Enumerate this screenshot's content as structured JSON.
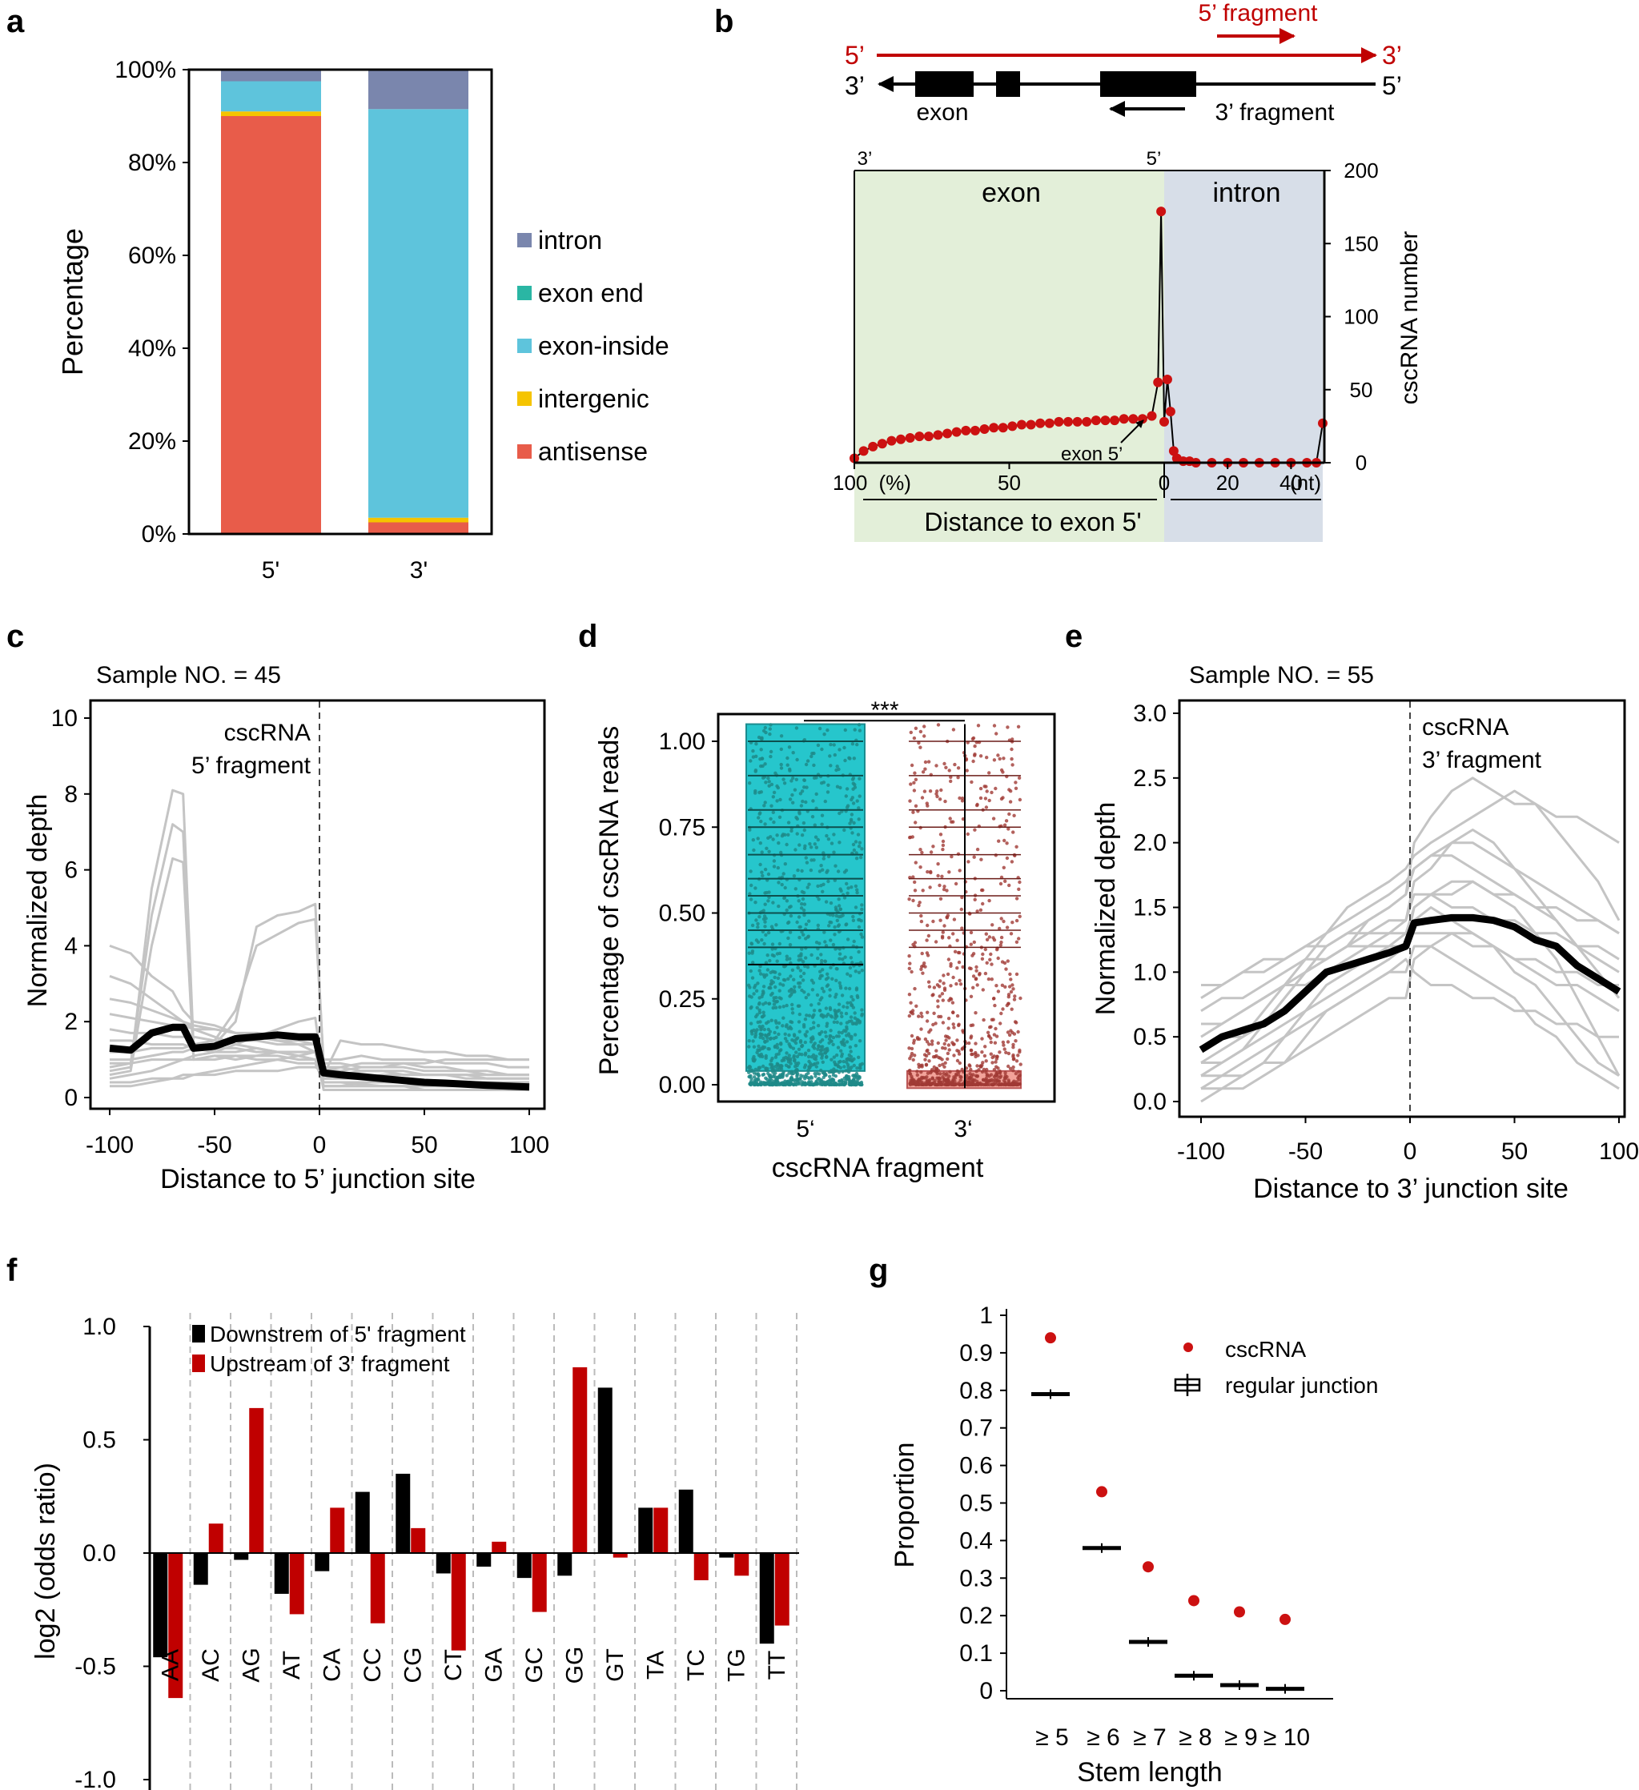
{
  "panel_labels": [
    "a",
    "b",
    "c",
    "d",
    "e",
    "f",
    "g"
  ],
  "colors": {
    "intron": "#7a86ad",
    "exon_end": "#2ab6a4",
    "exon_inside": "#5ec4dc",
    "intergenic": "#f5c400",
    "antisense": "#e85c4a",
    "red": "#c00000",
    "dot_red": "#cc1111",
    "exon_bg": "#e3efd9",
    "intron_bg": "#d7dee8",
    "gray_line": "#c4c4c4",
    "teal_box": "#26c6cc",
    "pink_box": "#f2a39a"
  },
  "chart_data": [
    {
      "panel": "a",
      "type": "bar",
      "stacked": true,
      "ylabel": "Percentage",
      "categories": [
        "5'",
        "3'"
      ],
      "y_ticks": [
        "0%",
        "20%",
        "40%",
        "60%",
        "80%",
        "100%"
      ],
      "ylim": [
        0,
        100
      ],
      "series": [
        {
          "name": "antisense",
          "values": [
            90.0,
            2.5
          ]
        },
        {
          "name": "intergenic",
          "values": [
            1.0,
            1.0
          ]
        },
        {
          "name": "exon-inside",
          "values": [
            6.5,
            88.0
          ]
        },
        {
          "name": "exon end",
          "values": [
            0,
            0
          ]
        },
        {
          "name": "intron",
          "values": [
            2.5,
            8.5
          ]
        }
      ],
      "legend_order": [
        "intron",
        "exon end",
        "exon-inside",
        "intergenic",
        "antisense"
      ]
    },
    {
      "panel": "b",
      "type": "line",
      "schematic": {
        "top_left": "5’",
        "top_right": "3’",
        "bottom_left": "3’",
        "bottom_right": "5’",
        "fragment5": "5’ fragment",
        "exon": "exon",
        "fragment3": "3’ fragment"
      },
      "region_labels": [
        "exon",
        "intron"
      ],
      "corner_labels": [
        "3’",
        "5’"
      ],
      "ylabel": "cscRNA number",
      "y_ticks": [
        "0",
        "50",
        "100",
        "150",
        "200"
      ],
      "ylim": [
        0,
        200
      ],
      "x_ticks": [
        "100",
        "(%)",
        "50",
        "0",
        "20",
        "40",
        "(nt)"
      ],
      "xlabel": "Distance to exon 5'",
      "annotation": "exon 5’",
      "exon_x_percent": [
        100,
        97,
        94,
        91,
        88,
        85,
        82,
        79,
        76,
        73,
        70,
        67,
        64,
        61,
        58,
        55,
        52,
        49,
        46,
        43,
        40,
        37,
        34,
        31,
        28,
        25,
        22,
        19,
        16,
        13,
        10,
        7,
        4,
        2,
        1
      ],
      "exon_values": [
        3,
        8,
        11,
        13,
        15,
        16,
        17,
        18,
        18,
        19,
        20,
        21,
        22,
        22,
        23,
        24,
        24,
        25,
        26,
        26,
        27,
        27,
        28,
        28,
        28,
        28,
        29,
        29,
        29,
        30,
        30,
        30,
        32,
        55,
        172
      ],
      "intron_x_nt": [
        0,
        1,
        2,
        3,
        4,
        6,
        8,
        10,
        15,
        20,
        25,
        30,
        35,
        40,
        45,
        48,
        50
      ],
      "intron_values": [
        28,
        57,
        35,
        8,
        3,
        1,
        1,
        0,
        0,
        0,
        0,
        0,
        0,
        0,
        0,
        0,
        27
      ]
    },
    {
      "panel": "c",
      "type": "line",
      "title": "Sample NO. = 45",
      "annotation": [
        "cscRNA",
        "5’ fragment"
      ],
      "ylabel": "Normalized depth",
      "xlabel": "Distance to 5’ junction site",
      "y_ticks": [
        "0",
        "2",
        "4",
        "6",
        "8",
        "10"
      ],
      "ylim": [
        0,
        10
      ],
      "x_ticks": [
        "-100",
        "-50",
        "0",
        "50",
        "100"
      ],
      "xlim": [
        -100,
        100
      ],
      "x": [
        -100,
        -90,
        -80,
        -70,
        -65,
        -60,
        -50,
        -40,
        -30,
        -20,
        -10,
        -2,
        2,
        10,
        20,
        30,
        40,
        50,
        60,
        70,
        80,
        90,
        100
      ],
      "mean_values": [
        1.3,
        1.25,
        1.7,
        1.85,
        1.85,
        1.3,
        1.35,
        1.55,
        1.6,
        1.65,
        1.6,
        1.6,
        0.65,
        0.6,
        0.55,
        0.5,
        0.45,
        0.4,
        0.38,
        0.35,
        0.32,
        0.3,
        0.28
      ],
      "sample_series": [
        [
          4.0,
          3.8,
          3.2,
          2.8,
          2.3,
          2.0,
          1.9,
          1.7,
          1.6,
          1.5,
          1.4,
          1.2,
          0.4,
          0.4,
          0.35,
          0.3,
          0.3,
          0.3,
          0.3,
          0.3,
          0.3,
          0.3,
          0.3
        ],
        [
          0.7,
          0.8,
          5.5,
          8.1,
          8.0,
          1.3,
          1.2,
          1.2,
          1.3,
          1.2,
          1.1,
          1.0,
          0.7,
          0.8,
          0.9,
          0.9,
          0.9,
          0.8,
          0.8,
          0.7,
          0.7,
          0.6,
          0.6
        ],
        [
          0.8,
          0.9,
          4.8,
          7.2,
          7.0,
          1.0,
          1.1,
          1.0,
          1.1,
          1.1,
          1.0,
          1.0,
          0.5,
          0.6,
          0.7,
          0.7,
          0.7,
          0.6,
          0.6,
          0.6,
          0.5,
          0.5,
          0.5
        ],
        [
          0.6,
          0.7,
          4.0,
          6.3,
          6.2,
          1.0,
          1.0,
          1.1,
          1.0,
          1.0,
          0.9,
          0.9,
          0.4,
          0.4,
          0.4,
          0.4,
          0.4,
          0.4,
          0.4,
          0.4,
          0.4,
          0.4,
          0.4
        ],
        [
          1.0,
          1.0,
          1.1,
          1.2,
          1.2,
          1.3,
          1.4,
          2.0,
          4.5,
          4.8,
          4.9,
          5.1,
          0.8,
          0.8,
          0.7,
          0.7,
          0.6,
          0.6,
          0.6,
          0.5,
          0.5,
          0.5,
          0.5
        ],
        [
          1.2,
          1.2,
          1.3,
          1.3,
          1.3,
          1.4,
          1.5,
          2.3,
          4.0,
          4.3,
          4.6,
          4.7,
          0.9,
          0.9,
          0.8,
          0.8,
          0.8,
          0.7,
          0.7,
          0.7,
          0.6,
          0.6,
          0.6
        ],
        [
          3.2,
          3.0,
          2.6,
          2.2,
          2.0,
          1.8,
          1.6,
          1.4,
          1.3,
          1.2,
          1.1,
          1.0,
          0.3,
          0.3,
          0.3,
          0.3,
          0.3,
          0.2,
          0.2,
          0.2,
          0.2,
          0.2,
          0.2
        ],
        [
          2.2,
          2.1,
          2.0,
          1.9,
          1.9,
          1.8,
          1.8,
          1.7,
          1.7,
          1.6,
          1.6,
          1.5,
          1.0,
          1.0,
          1.1,
          1.0,
          1.0,
          1.0,
          0.9,
          0.9,
          0.9,
          0.8,
          0.8
        ],
        [
          0.5,
          0.6,
          0.7,
          0.9,
          1.0,
          1.1,
          1.2,
          1.4,
          1.6,
          1.8,
          2.0,
          2.1,
          0.5,
          0.5,
          0.5,
          0.6,
          0.6,
          0.6,
          0.6,
          0.6,
          0.6,
          0.6,
          0.6
        ],
        [
          1.5,
          1.5,
          1.4,
          1.4,
          1.4,
          1.3,
          1.3,
          1.3,
          1.2,
          1.2,
          1.2,
          1.2,
          0.3,
          0.3,
          0.4,
          0.4,
          0.4,
          0.4,
          0.4,
          0.4,
          0.4,
          0.4,
          0.4
        ],
        [
          0.3,
          0.3,
          0.4,
          0.5,
          0.5,
          0.6,
          0.7,
          0.8,
          0.9,
          1.0,
          1.1,
          1.2,
          0.2,
          0.2,
          0.2,
          0.2,
          0.2,
          0.2,
          0.2,
          0.2,
          0.2,
          0.2,
          0.2
        ],
        [
          1.8,
          1.7,
          1.7,
          1.6,
          1.6,
          1.6,
          1.5,
          1.5,
          1.5,
          1.4,
          1.4,
          1.4,
          0.6,
          1.5,
          1.4,
          1.4,
          1.3,
          1.2,
          1.2,
          1.1,
          1.1,
          1.0,
          1.0
        ],
        [
          0.9,
          0.9,
          1.0,
          1.0,
          1.0,
          1.0,
          1.1,
          1.1,
          1.1,
          1.2,
          1.2,
          1.2,
          0.3,
          0.3,
          0.3,
          0.3,
          0.3,
          0.3,
          0.3,
          0.3,
          0.3,
          0.3,
          0.3
        ],
        [
          2.6,
          2.5,
          2.3,
          2.1,
          2.0,
          1.9,
          1.8,
          1.7,
          1.6,
          1.5,
          1.5,
          1.4,
          0.5,
          0.5,
          0.5,
          0.5,
          0.5,
          0.4,
          0.4,
          0.4,
          0.4,
          0.4,
          0.4
        ],
        [
          0.4,
          0.4,
          0.5,
          0.5,
          0.6,
          0.6,
          0.6,
          0.7,
          0.7,
          0.7,
          0.8,
          0.8,
          0.7,
          0.7,
          0.8,
          0.8,
          0.9,
          0.9,
          1.0,
          1.0,
          1.0,
          1.0,
          1.0
        ]
      ]
    },
    {
      "panel": "d",
      "type": "scatter",
      "ylabel": "Percentage of cscRNA reads",
      "xlabel": "cscRNA fragment",
      "categories": [
        "5‘",
        "3‘"
      ],
      "y_ticks": [
        "0.00",
        "0.25",
        "0.50",
        "0.75",
        "1.00"
      ],
      "ylim": [
        0,
        1
      ],
      "boxes": [
        {
          "name": "5‘",
          "q1": 0.04,
          "median": 0.35,
          "q3": 1.05
        },
        {
          "name": "3‘",
          "q1": -0.01,
          "median": 0.0,
          "q3": 0.04
        }
      ],
      "significance": "***"
    },
    {
      "panel": "e",
      "type": "line",
      "title": "Sample NO. = 55",
      "annotation": [
        "cscRNA",
        "3’ fragment"
      ],
      "ylabel": "Normalized depth",
      "xlabel": "Distance to 3’ junction site",
      "y_ticks": [
        "0.0",
        "0.5",
        "1.0",
        "1.5",
        "2.0",
        "2.5",
        "3.0"
      ],
      "ylim": [
        0,
        3
      ],
      "x_ticks": [
        "-100",
        "-50",
        "0",
        "50",
        "100"
      ],
      "xlim": [
        -100,
        100
      ],
      "x": [
        -100,
        -90,
        -80,
        -70,
        -60,
        -50,
        -40,
        -30,
        -20,
        -10,
        -2,
        2,
        10,
        20,
        30,
        40,
        50,
        60,
        70,
        80,
        90,
        100
      ],
      "mean_values": [
        0.4,
        0.5,
        0.55,
        0.6,
        0.7,
        0.85,
        1.0,
        1.05,
        1.1,
        1.15,
        1.2,
        1.38,
        1.4,
        1.42,
        1.42,
        1.4,
        1.35,
        1.25,
        1.2,
        1.05,
        0.95,
        0.85
      ],
      "sample_series": [
        [
          0.2,
          0.3,
          0.4,
          0.6,
          0.8,
          1.0,
          1.2,
          1.3,
          1.4,
          1.5,
          1.6,
          2.0,
          2.2,
          2.4,
          2.5,
          2.4,
          2.3,
          2.3,
          2.2,
          2.2,
          2.1,
          2.0
        ],
        [
          0.5,
          0.6,
          0.7,
          0.8,
          0.9,
          1.0,
          1.1,
          1.2,
          1.3,
          1.3,
          1.4,
          1.7,
          1.8,
          2.0,
          2.1,
          2.0,
          1.8,
          1.6,
          1.4,
          1.2,
          1.0,
          0.8
        ],
        [
          0.1,
          0.1,
          0.2,
          0.3,
          0.5,
          0.7,
          0.9,
          1.0,
          1.1,
          1.2,
          1.2,
          1.5,
          1.6,
          1.7,
          1.7,
          1.6,
          1.5,
          1.3,
          1.1,
          0.8,
          0.5,
          0.2
        ],
        [
          0.7,
          0.8,
          0.8,
          0.9,
          1.0,
          1.1,
          1.1,
          1.2,
          1.2,
          1.3,
          1.3,
          1.3,
          1.3,
          1.3,
          1.2,
          1.2,
          1.1,
          1.1,
          1.0,
          1.0,
          0.9,
          0.9
        ],
        [
          0.3,
          0.4,
          0.5,
          0.6,
          0.8,
          1.0,
          1.1,
          1.2,
          1.4,
          1.5,
          1.6,
          1.8,
          1.9,
          1.9,
          1.8,
          1.7,
          1.6,
          1.5,
          1.4,
          1.2,
          1.1,
          1.0
        ],
        [
          0.0,
          0.1,
          0.1,
          0.2,
          0.3,
          0.5,
          0.7,
          0.8,
          0.9,
          1.0,
          1.0,
          1.2,
          1.2,
          1.1,
          1.0,
          0.9,
          0.8,
          0.6,
          0.5,
          0.3,
          0.2,
          0.1
        ],
        [
          0.8,
          0.9,
          1.0,
          1.0,
          1.1,
          1.2,
          1.2,
          1.3,
          1.3,
          1.4,
          1.4,
          1.6,
          1.6,
          1.5,
          1.5,
          1.4,
          1.4,
          1.3,
          1.3,
          1.2,
          1.2,
          1.1
        ],
        [
          0.4,
          0.5,
          0.5,
          0.7,
          0.9,
          1.1,
          1.3,
          1.5,
          1.6,
          1.7,
          1.8,
          1.9,
          2.0,
          2.1,
          2.2,
          2.3,
          2.4,
          2.3,
          2.1,
          1.9,
          1.7,
          1.4
        ],
        [
          0.2,
          0.2,
          0.3,
          0.4,
          0.5,
          0.6,
          0.7,
          0.8,
          0.9,
          1.0,
          1.1,
          1.0,
          0.9,
          0.9,
          0.8,
          0.8,
          0.7,
          0.7,
          0.6,
          0.6,
          0.5,
          0.5
        ],
        [
          0.6,
          0.6,
          0.7,
          0.8,
          0.9,
          0.9,
          1.0,
          1.1,
          1.2,
          1.2,
          1.3,
          1.5,
          1.6,
          1.6,
          1.7,
          1.6,
          1.6,
          1.5,
          1.5,
          1.4,
          1.4,
          1.3
        ],
        [
          0.1,
          0.2,
          0.2,
          0.3,
          0.3,
          0.4,
          0.5,
          0.6,
          0.7,
          0.8,
          0.8,
          1.1,
          1.2,
          1.3,
          1.3,
          1.2,
          1.1,
          1.0,
          0.9,
          0.9,
          0.8,
          0.7
        ],
        [
          0.9,
          0.9,
          1.0,
          1.1,
          1.1,
          1.2,
          1.3,
          1.4,
          1.5,
          1.6,
          1.7,
          1.8,
          1.9,
          2.0,
          2.0,
          1.9,
          1.8,
          1.7,
          1.6,
          1.5,
          1.4,
          1.3
        ],
        [
          0.3,
          0.3,
          0.4,
          0.5,
          0.6,
          0.7,
          0.8,
          0.9,
          1.0,
          1.1,
          1.2,
          1.4,
          1.5,
          1.4,
          1.3,
          1.2,
          1.0,
          0.9,
          0.7,
          0.5,
          0.3,
          0.2
        ]
      ]
    },
    {
      "panel": "f",
      "type": "bar",
      "ylabel": "log2 (odds ratio)",
      "y_ticks": [
        "-1.0",
        "-0.5",
        "0.0",
        "0.5",
        "1.0"
      ],
      "ylim": [
        -1.0,
        1.0
      ],
      "categories": [
        "AA",
        "AC",
        "AG",
        "AT",
        "CA",
        "CC",
        "CG",
        "CT",
        "GA",
        "GC",
        "GG",
        "GT",
        "TA",
        "TC",
        "TG",
        "TT"
      ],
      "series": [
        {
          "name": "Downstrem of 5' fragment",
          "values": [
            -0.46,
            -0.14,
            -0.03,
            -0.18,
            -0.08,
            0.27,
            0.35,
            -0.09,
            -0.06,
            -0.11,
            -0.1,
            0.73,
            0.2,
            0.28,
            -0.02,
            -0.4
          ]
        },
        {
          "name": "Upstream of 3' fragment",
          "values": [
            -0.64,
            0.13,
            0.64,
            -0.27,
            0.2,
            -0.31,
            0.11,
            -0.43,
            0.05,
            -0.26,
            0.82,
            -0.02,
            0.2,
            -0.12,
            -0.1,
            -0.32
          ]
        }
      ]
    },
    {
      "panel": "g",
      "type": "scatter",
      "ylabel": "Proportion",
      "xlabel": "Stem length",
      "categories": [
        "≥ 5",
        "≥ 6",
        "≥ 7",
        "≥ 8",
        "≥ 9",
        "≥ 10"
      ],
      "y_ticks": [
        "0",
        "0.1",
        "0.2",
        "0.3",
        "0.4",
        "0.5",
        "0.6",
        "0.7",
        "0.8",
        "0.9",
        "1"
      ],
      "ylim": [
        0,
        1
      ],
      "series": [
        {
          "name": "cscRNA",
          "values": [
            0.94,
            0.53,
            0.33,
            0.24,
            0.21,
            0.19
          ]
        },
        {
          "name": "regular junction",
          "values": [
            0.79,
            0.38,
            0.13,
            0.04,
            0.015,
            0.005
          ]
        }
      ]
    }
  ]
}
